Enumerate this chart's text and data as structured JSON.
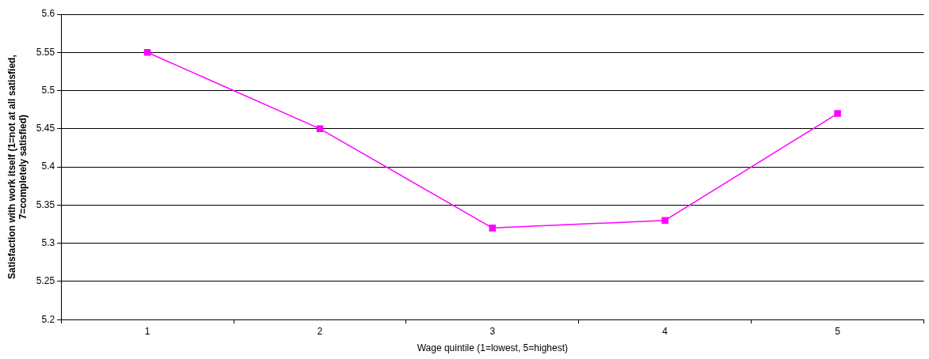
{
  "chart_data": {
    "type": "line",
    "xlabel": "Wage quintile (1=lowest, 5=highest)",
    "ylabel": "Satisfaction with work itself (1=not at all satisfied, 7=completely satisfied)",
    "categories": [
      "1",
      "2",
      "3",
      "4",
      "5"
    ],
    "series": [
      {
        "color": "#ff00ff",
        "values": [
          5.55,
          5.45,
          5.32,
          5.33,
          5.47
        ]
      }
    ],
    "ylim": [
      5.2,
      5.6
    ],
    "yticks": [
      5.2,
      5.25,
      5.3,
      5.35,
      5.4,
      5.45,
      5.5,
      5.55,
      5.6
    ],
    "grid": "y",
    "legend": false,
    "marker": "square",
    "line_style": "solid"
  }
}
